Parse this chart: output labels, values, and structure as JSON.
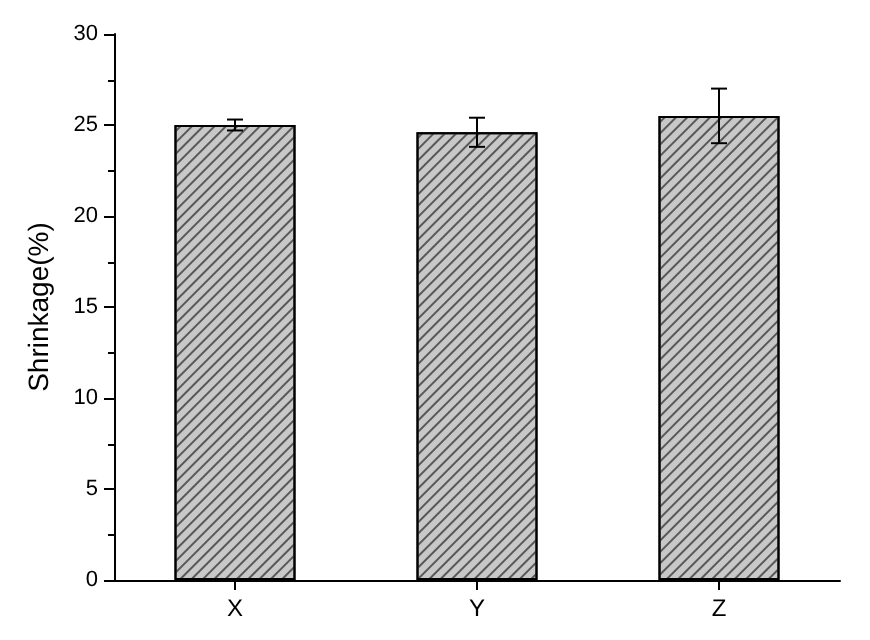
{
  "chart_data": {
    "type": "bar",
    "ylabel": "Shrinkage(%)",
    "categories": [
      "X",
      "Y",
      "Z"
    ],
    "values": [
      25.0,
      24.6,
      25.5
    ],
    "errors": [
      0.3,
      0.8,
      1.5
    ],
    "color": "#c8c8c8",
    "ylim": [
      0,
      30
    ],
    "yticks": [
      0,
      5,
      10,
      15,
      20,
      25,
      30
    ],
    "grid": false
  }
}
